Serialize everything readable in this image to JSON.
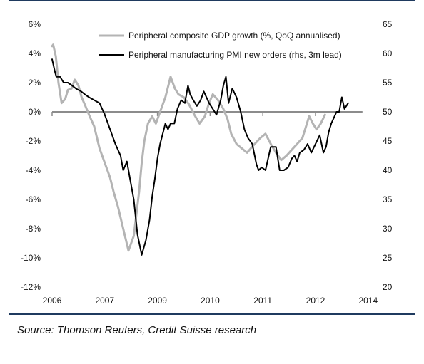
{
  "colors": {
    "frame": "#1f3a5f",
    "gdp_series": "#b4b4b4",
    "pmi_series": "#000000",
    "zero_line": "#8c8c8c"
  },
  "chart_data": {
    "type": "line",
    "legend_position": "top-right",
    "grid": false,
    "x_ticks": [
      "2006",
      "2007",
      "2009",
      "2010",
      "2011",
      "2012",
      "2014"
    ],
    "left_axis": {
      "range": [
        -12,
        6
      ],
      "ticks": [
        "-12%",
        "-10%",
        "-8%",
        "-6%",
        "-4%",
        "-2%",
        "0%",
        "2%",
        "4%",
        "6%"
      ]
    },
    "right_axis": {
      "range": [
        20,
        65
      ],
      "ticks": [
        "20",
        "25",
        "30",
        "35",
        "40",
        "45",
        "50",
        "55",
        "60",
        "65"
      ]
    },
    "series": [
      {
        "name": "Peripheral composite GDP growth (%, QoQ annualised)",
        "axis": "left",
        "x": [
          0,
          0.02,
          0.07,
          0.12,
          0.18,
          0.25,
          0.3,
          0.37,
          0.43,
          0.5,
          0.56,
          0.62,
          0.7,
          0.8,
          0.9,
          1.0,
          1.1,
          1.17,
          1.25,
          1.35,
          1.45,
          1.55,
          1.65,
          1.7,
          1.75,
          1.82,
          1.9,
          1.97,
          2.05,
          2.15,
          2.25,
          2.33,
          2.4,
          2.5,
          2.6,
          2.7,
          2.8,
          2.9,
          2.98,
          3.05,
          3.15,
          3.25,
          3.33,
          3.4,
          3.5,
          3.6,
          3.7,
          3.82,
          3.95,
          4.05,
          4.15,
          4.25,
          4.35,
          4.45,
          4.55,
          4.65,
          4.75,
          4.82,
          4.88,
          4.95,
          5.02,
          5.1,
          5.18
        ],
        "values": [
          4.5,
          4.6,
          3.8,
          2.0,
          0.6,
          0.9,
          1.5,
          1.6,
          2.2,
          1.8,
          1.0,
          0.5,
          -0.2,
          -1.0,
          -2.5,
          -3.5,
          -4.5,
          -5.5,
          -6.5,
          -8.0,
          -9.5,
          -8.5,
          -5.5,
          -3.5,
          -2.0,
          -0.8,
          -0.3,
          -0.8,
          0.0,
          1.0,
          2.4,
          1.6,
          1.2,
          1.0,
          0.5,
          -0.2,
          -0.8,
          -0.3,
          0.6,
          1.2,
          0.8,
          0.2,
          -0.5,
          -1.5,
          -2.2,
          -2.5,
          -2.8,
          -2.3,
          -1.8,
          -1.5,
          -2.2,
          -2.8,
          -3.3,
          -3.0,
          -2.6,
          -2.2,
          -1.8,
          -1.0,
          -0.3,
          -0.8,
          -1.2,
          -0.8,
          -0.2
        ]
      },
      {
        "name": "Peripheral manufacturing PMI new orders (rhs, 3m lead)",
        "axis": "right",
        "x": [
          0,
          0.05,
          0.08,
          0.15,
          0.22,
          0.3,
          0.38,
          0.45,
          0.55,
          0.62,
          0.7,
          0.8,
          0.9,
          1.0,
          1.12,
          1.2,
          1.3,
          1.35,
          1.42,
          1.48,
          1.55,
          1.62,
          1.7,
          1.78,
          1.85,
          1.9,
          1.95,
          2.0,
          2.05,
          2.15,
          2.2,
          2.25,
          2.32,
          2.38,
          2.45,
          2.52,
          2.58,
          2.62,
          2.68,
          2.75,
          2.82,
          2.88,
          2.93,
          2.98,
          3.05,
          3.12,
          3.2,
          3.25,
          3.3,
          3.35,
          3.42,
          3.5,
          3.58,
          3.65,
          3.72,
          3.8,
          3.88,
          3.92,
          3.98,
          4.05,
          4.15,
          4.25,
          4.32,
          4.4,
          4.48,
          4.55,
          4.6,
          4.65,
          4.7,
          4.78,
          4.85,
          4.92,
          5.0,
          5.08,
          5.15,
          5.2,
          5.25,
          5.3,
          5.35,
          5.4,
          5.45,
          5.5,
          5.55,
          5.62
        ],
        "values": [
          59,
          57,
          56,
          56,
          55,
          55,
          54.5,
          54,
          53.5,
          53,
          52.5,
          52,
          51.5,
          49.5,
          46.5,
          44.5,
          42.5,
          40,
          41.5,
          38.5,
          35,
          29,
          25.5,
          28,
          31.5,
          35.5,
          38.5,
          42,
          44.5,
          48,
          47,
          48,
          48,
          50.5,
          52,
          51.5,
          54.5,
          53,
          52,
          51,
          52,
          53.5,
          52.5,
          51.5,
          50.5,
          49.5,
          52,
          54.5,
          56,
          51.5,
          54,
          52.5,
          50,
          47,
          45.5,
          44.5,
          41,
          40,
          40.5,
          40,
          44,
          44,
          40,
          40,
          40.5,
          42,
          42.5,
          41.5,
          43,
          43.5,
          44.5,
          43,
          44.5,
          46,
          43,
          44,
          46.5,
          48,
          49,
          50,
          50,
          52.5,
          50.5,
          51.5
        ]
      }
    ]
  },
  "source_note": "Source: Thomson Reuters, Credit Suisse research"
}
